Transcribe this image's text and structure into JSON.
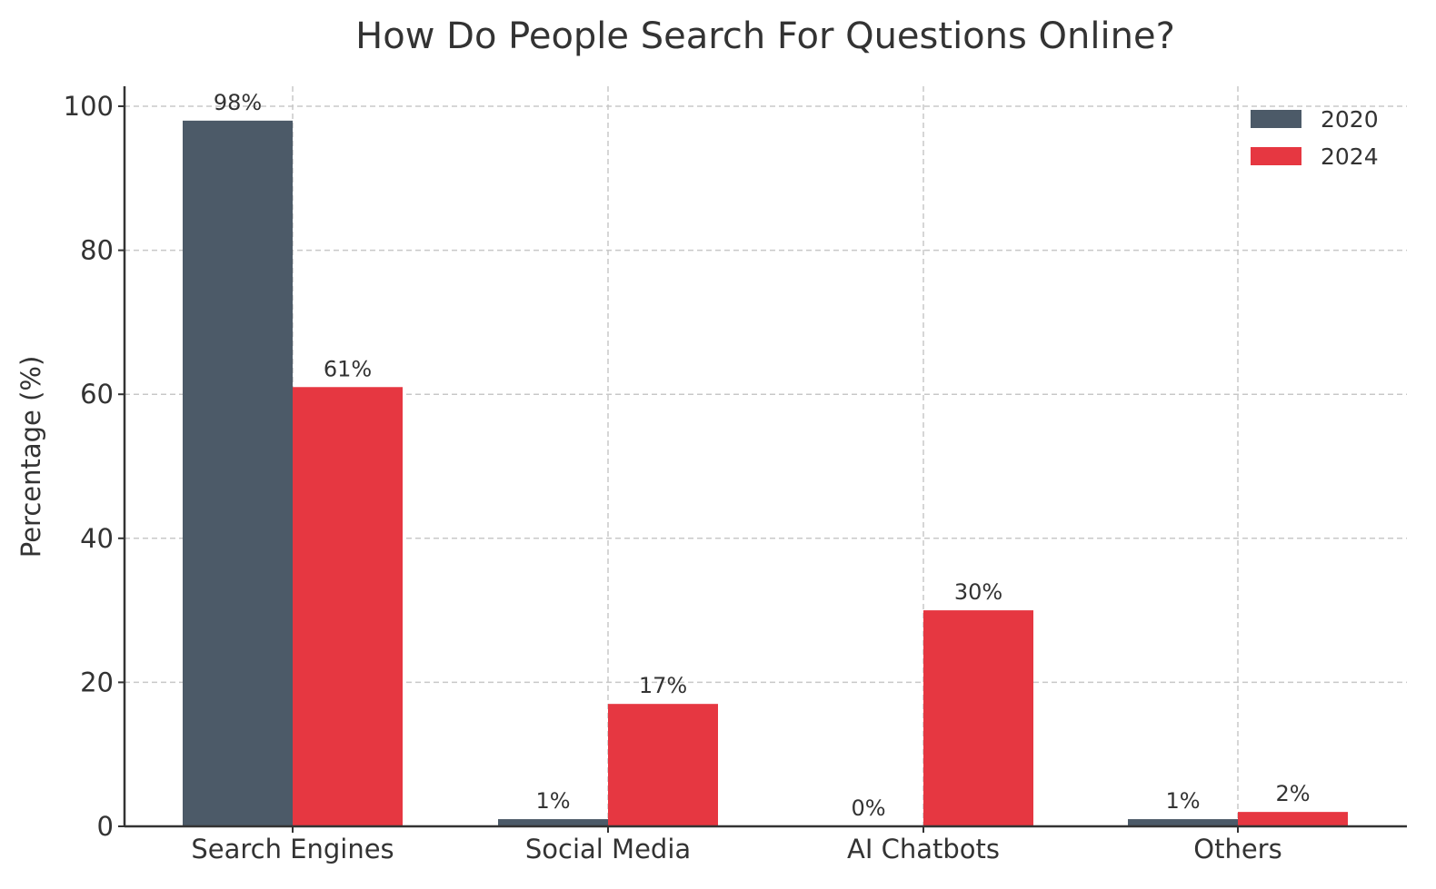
{
  "chart_data": {
    "type": "bar",
    "title": "How Do People Search For Questions Online?",
    "xlabel": "",
    "ylabel": "Percentage (%)",
    "ylim": [
      0,
      103
    ],
    "yticks": [
      0,
      20,
      40,
      60,
      80,
      100
    ],
    "grid": true,
    "legend_position": "upper right",
    "categories": [
      "Search Engines",
      "Social Media",
      "AI Chatbots",
      "Others"
    ],
    "series": [
      {
        "name": "2020",
        "color": "#4c5a68",
        "values": [
          98,
          1,
          0,
          1
        ],
        "labels": [
          "98%",
          "1%",
          "0%",
          "1%"
        ]
      },
      {
        "name": "2024",
        "color": "#e63741",
        "values": [
          61,
          17,
          30,
          2
        ],
        "labels": [
          "61%",
          "17%",
          "30%",
          "2%"
        ]
      }
    ]
  }
}
